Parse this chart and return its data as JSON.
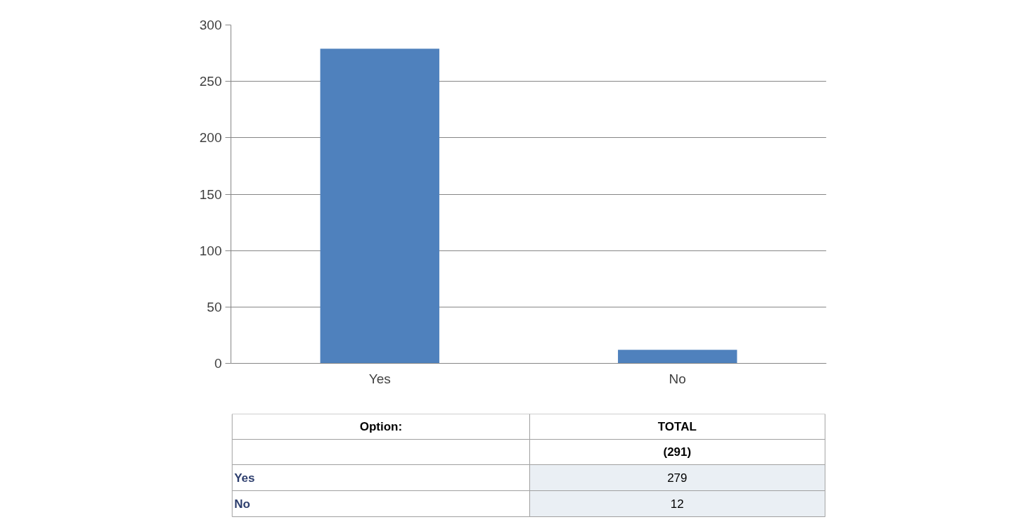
{
  "chart_data": {
    "type": "bar",
    "categories": [
      "Yes",
      "No"
    ],
    "values": [
      279,
      12
    ],
    "color": "#4f81bd",
    "ylim": [
      0,
      300
    ],
    "yticks": [
      0,
      50,
      100,
      150,
      200,
      250,
      300
    ],
    "grid": "y",
    "annotations": [
      "Option:",
      "TOTAL",
      "(291)",
      "279",
      "12"
    ]
  }
}
